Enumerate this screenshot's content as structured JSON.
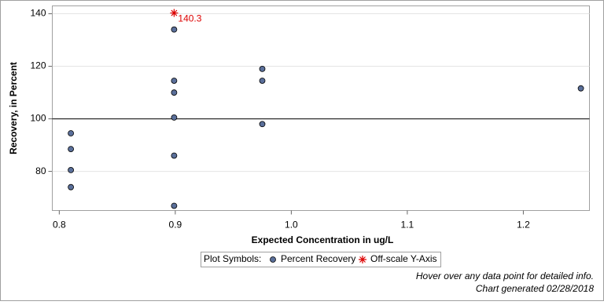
{
  "chart_data": {
    "type": "scatter",
    "xlabel": "Expected Concentration in ug/L",
    "ylabel": "Recovery, in Percent",
    "xlim": [
      0.794,
      1.257
    ],
    "ylim": [
      65.1,
      143
    ],
    "xticks": [
      0.8,
      0.9,
      {
        "value": 1,
        "label": "1.0"
      },
      1.1,
      1.2
    ],
    "yticks": [
      80,
      100,
      120,
      140
    ],
    "grid": true,
    "reference_line": 100,
    "legend_title": "Plot Symbols:",
    "series": [
      {
        "name": "Percent Recovery",
        "color": "#5a6f9a",
        "x": [
          0.81,
          0.81,
          0.81,
          0.81,
          0.899,
          0.899,
          0.899,
          0.899,
          0.899,
          0.899,
          0.975,
          0.975,
          0.975,
          1.2496
        ],
        "values": [
          94.5,
          88.5,
          80.5,
          74,
          134,
          114.5,
          110,
          100.5,
          86,
          66.9,
          119,
          114.5,
          98,
          111.6
        ]
      },
      {
        "name": "Off-scale Y-Axis",
        "color": "#dd0000",
        "x": [
          0.899
        ],
        "values": [
          140.3
        ]
      }
    ],
    "footnotes": [
      "Hover over any data point for detailed info.",
      "Chart generated 02/28/2018"
    ]
  }
}
